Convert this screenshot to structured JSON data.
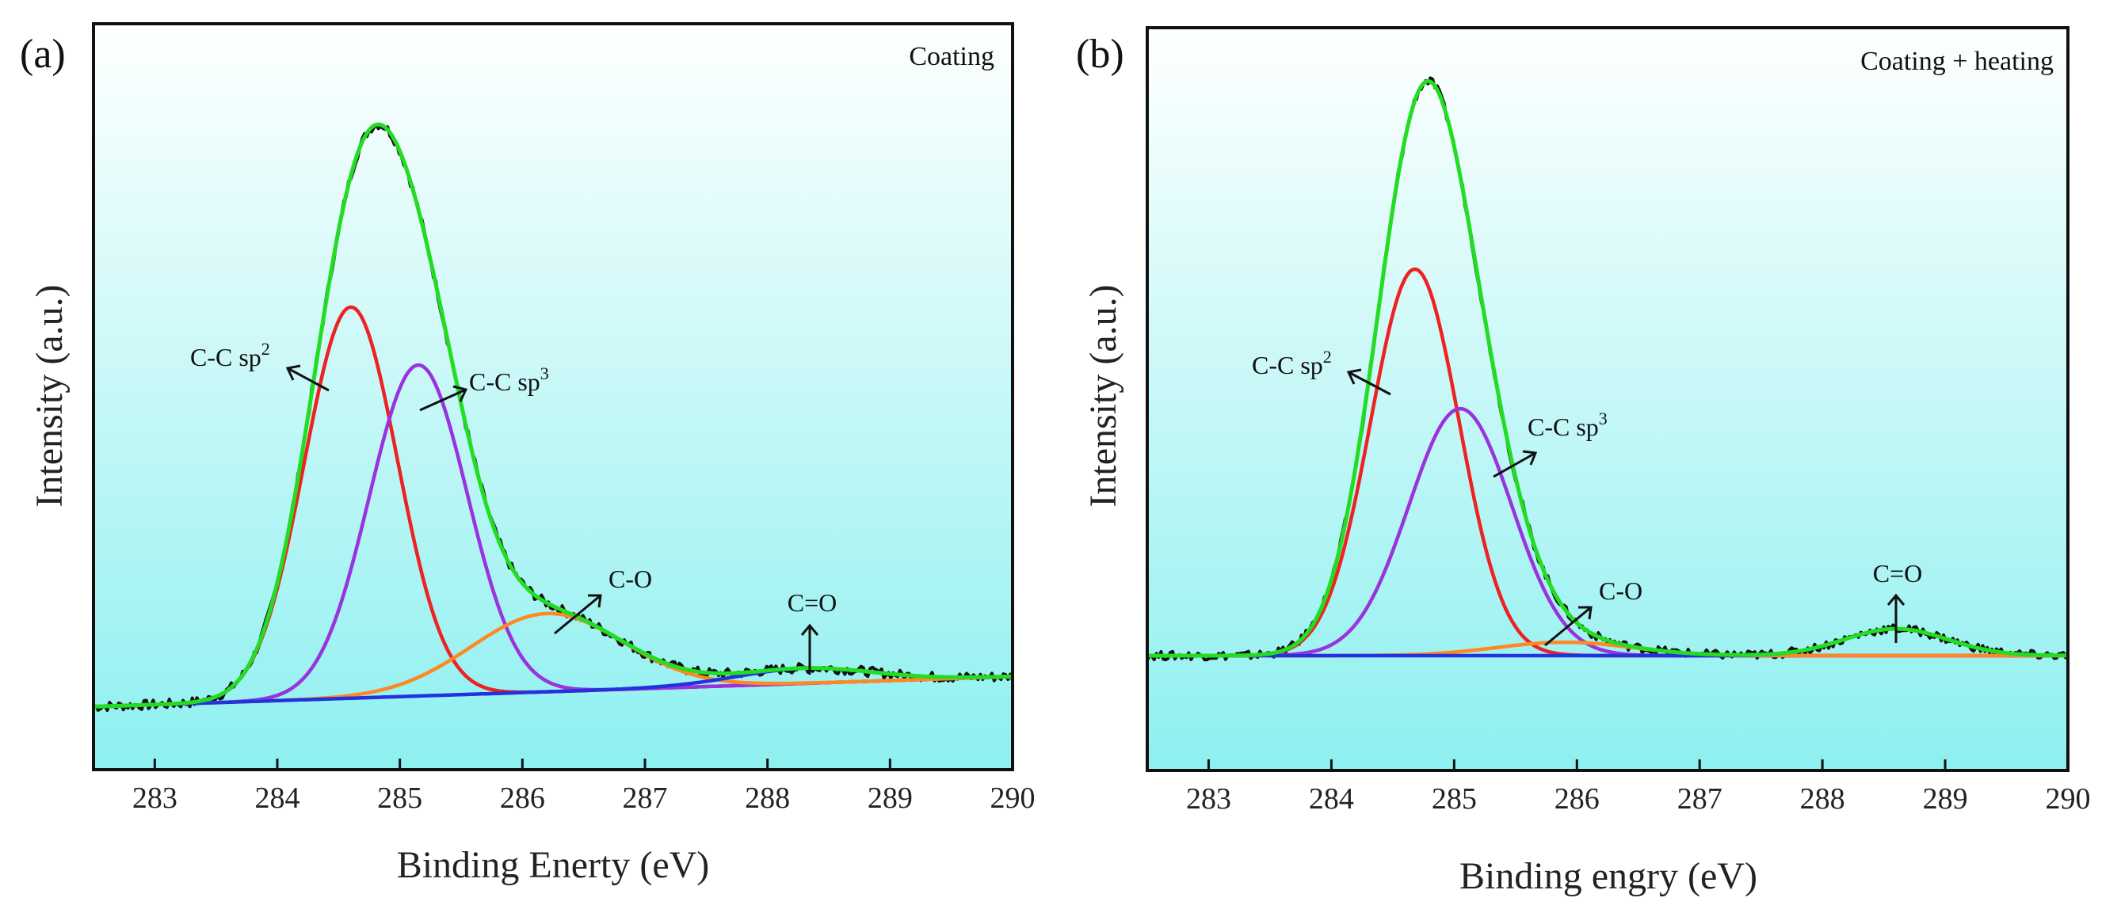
{
  "colors": {
    "background_top": "#ffffff",
    "background_bottom": "#8ef0f0",
    "raw": "#111111",
    "envelope": "#22dd22",
    "sp2": "#ee2222",
    "sp3": "#9933dd",
    "co": "#ff8822",
    "c_double_o": "#2233dd"
  },
  "chart_data": [
    {
      "type": "line",
      "panel": "(a)",
      "corner_label": "Coating",
      "xlabel": "Binding Enerty (eV)",
      "ylabel": "Intensity (a.u.)",
      "xlim": [
        282.5,
        290
      ],
      "xticks": [
        283,
        284,
        285,
        286,
        287,
        288,
        289,
        290
      ],
      "baseline": {
        "y0": 1.0,
        "y1": 6.0
      },
      "peaks": [
        {
          "id": "sp2",
          "name": "C-C sp",
          "sup": "2",
          "center": 284.6,
          "height": 65,
          "sigma": 0.38
        },
        {
          "id": "sp3",
          "name": "C-C sp",
          "sup": "3",
          "center": 285.15,
          "height": 55,
          "sigma": 0.4
        },
        {
          "id": "co",
          "name": "C-O",
          "sup": "",
          "center": 286.2,
          "height": 13,
          "sigma": 0.62
        },
        {
          "id": "c_double_o",
          "name": "C=O",
          "sup": "",
          "center": 288.3,
          "height": 2.5,
          "sigma": 0.55
        }
      ],
      "peak_max": 100
    },
    {
      "type": "line",
      "panel": "(b)",
      "corner_label": "Coating + heating",
      "xlabel": "Binding engry (eV)",
      "ylabel": "Intensity (a.u.)",
      "xlim": [
        282.5,
        290
      ],
      "xticks": [
        283,
        284,
        285,
        286,
        287,
        288,
        289,
        290
      ],
      "baseline": {
        "y0": 0,
        "y1": 0
      },
      "peaks": [
        {
          "id": "sp2",
          "name": "C-C sp",
          "sup": "2",
          "center": 284.68,
          "height": 72,
          "sigma": 0.36
        },
        {
          "id": "sp3",
          "name": "C-C sp",
          "sup": "3",
          "center": 285.05,
          "height": 46,
          "sigma": 0.42
        },
        {
          "id": "co",
          "name": "C-O",
          "sup": "",
          "center": 285.9,
          "height": 2.5,
          "sigma": 0.55
        },
        {
          "id": "c_double_o",
          "name": "C=O",
          "sup": "",
          "center": 288.6,
          "height": 5,
          "sigma": 0.42
        }
      ],
      "peak_max": 100
    }
  ]
}
